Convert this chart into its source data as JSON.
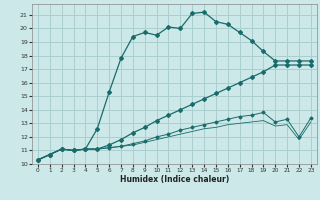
{
  "xlabel": "Humidex (Indice chaleur)",
  "xlim": [
    -0.5,
    23.5
  ],
  "ylim": [
    10.0,
    21.8
  ],
  "yticks": [
    10,
    11,
    12,
    13,
    14,
    15,
    16,
    17,
    18,
    19,
    20,
    21
  ],
  "xticks": [
    0,
    1,
    2,
    3,
    4,
    5,
    6,
    7,
    8,
    9,
    10,
    11,
    12,
    13,
    14,
    15,
    16,
    17,
    18,
    19,
    20,
    21,
    22,
    23
  ],
  "bg_color": "#cce8e8",
  "grid_color": "#aacfcf",
  "line_color": "#1a6b6b",
  "line1_x": [
    0,
    1,
    2,
    3,
    4,
    5,
    6,
    7,
    8,
    9,
    10,
    11,
    12,
    13,
    14,
    15,
    16,
    17,
    18,
    19,
    20,
    21,
    22,
    23
  ],
  "line1_y": [
    10.3,
    10.7,
    11.1,
    11.0,
    11.1,
    12.6,
    15.3,
    17.8,
    19.4,
    19.7,
    19.5,
    20.1,
    20.0,
    21.1,
    21.2,
    20.5,
    20.3,
    19.7,
    19.1,
    18.3,
    17.6,
    17.6,
    17.6,
    17.6
  ],
  "line2_x": [
    0,
    1,
    2,
    3,
    4,
    5,
    6,
    7,
    8,
    9,
    10,
    11,
    12,
    13,
    14,
    15,
    16,
    17,
    18,
    19,
    20,
    21,
    22,
    23
  ],
  "line2_y": [
    10.3,
    10.7,
    11.1,
    11.0,
    11.1,
    11.1,
    11.4,
    11.8,
    12.3,
    12.7,
    13.2,
    13.6,
    14.0,
    14.4,
    14.8,
    15.2,
    15.6,
    16.0,
    16.4,
    16.8,
    17.3,
    17.3,
    17.3,
    17.3
  ],
  "line3_x": [
    0,
    1,
    2,
    3,
    4,
    5,
    6,
    7,
    8,
    9,
    10,
    11,
    12,
    13,
    14,
    15,
    16,
    17,
    18,
    19,
    20,
    21,
    22,
    23
  ],
  "line3_y": [
    10.3,
    10.7,
    11.1,
    11.0,
    11.1,
    11.1,
    11.2,
    11.3,
    11.5,
    11.7,
    12.0,
    12.2,
    12.5,
    12.7,
    12.9,
    13.1,
    13.3,
    13.5,
    13.6,
    13.8,
    13.1,
    13.3,
    12.0,
    13.4
  ],
  "line4_x": [
    0,
    1,
    2,
    3,
    4,
    5,
    6,
    7,
    8,
    9,
    10,
    11,
    12,
    13,
    14,
    15,
    16,
    17,
    18,
    19,
    20,
    21,
    22,
    23
  ],
  "line4_y": [
    10.3,
    10.7,
    11.1,
    11.0,
    11.1,
    11.1,
    11.2,
    11.3,
    11.4,
    11.6,
    11.8,
    12.0,
    12.2,
    12.4,
    12.6,
    12.7,
    12.9,
    13.0,
    13.1,
    13.2,
    12.8,
    12.9,
    11.8,
    13.1
  ]
}
